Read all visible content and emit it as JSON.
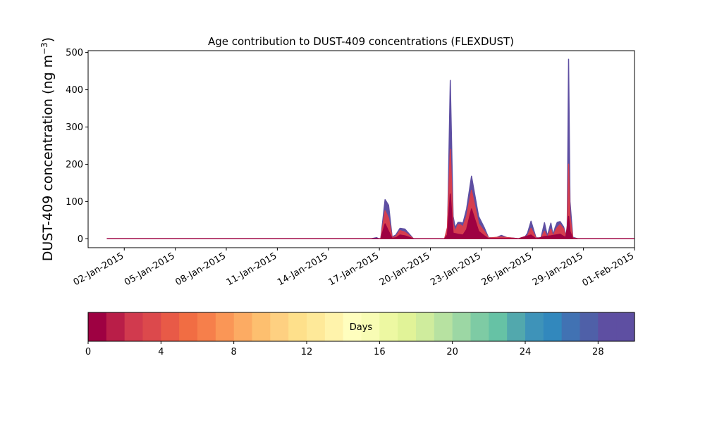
{
  "chart_data": {
    "type": "area",
    "title": "Age contribution to DUST-409 concentrations (FLEXDUST)",
    "ylabel": "DUST-409 concentration (ng m",
    "ylabel_unit_sup": "−3",
    "ylabel_close": ")",
    "xlabel": "",
    "ylim": [
      -24,
      505
    ],
    "xlim": [
      "2014-12-30T21:00",
      "2015-02-01T00:00"
    ],
    "y_ticks": [
      0,
      100,
      200,
      300,
      400,
      500
    ],
    "x_ticks": [
      {
        "date": "2015-01-02",
        "label": "02-Jan-2015"
      },
      {
        "date": "2015-01-05",
        "label": "05-Jan-2015"
      },
      {
        "date": "2015-01-08",
        "label": "08-Jan-2015"
      },
      {
        "date": "2015-01-11",
        "label": "11-Jan-2015"
      },
      {
        "date": "2015-01-14",
        "label": "14-Jan-2015"
      },
      {
        "date": "2015-01-17",
        "label": "17-Jan-2015"
      },
      {
        "date": "2015-01-20",
        "label": "20-Jan-2015"
      },
      {
        "date": "2015-01-23",
        "label": "23-Jan-2015"
      },
      {
        "date": "2015-01-26",
        "label": "26-Jan-2015"
      },
      {
        "date": "2015-01-29",
        "label": "29-Jan-2015"
      },
      {
        "date": "2015-02-01",
        "label": "01-Feb-2015"
      }
    ],
    "grid": false,
    "series": [
      {
        "color": "#5e4fa2",
        "x": [
          "2015-01-01T00:00",
          "2015-01-16T12:00",
          "2015-01-16T20:00",
          "2015-01-16T23:00",
          "2015-01-17T02:00",
          "2015-01-17T08:00",
          "2015-01-17T13:00",
          "2015-01-17T18:00",
          "2015-01-17T23:00",
          "2015-01-18T05:00",
          "2015-01-18T12:00",
          "2015-01-19T00:00",
          "2015-01-20T00:00",
          "2015-01-20T16:00",
          "2015-01-20T20:00",
          "2015-01-21T00:00",
          "2015-01-21T04:00",
          "2015-01-21T08:00",
          "2015-01-21T11:00",
          "2015-01-21T15:00",
          "2015-01-21T18:00",
          "2015-01-21T22:00",
          "2015-01-22T03:00",
          "2015-01-22T10:00",
          "2015-01-22T20:00",
          "2015-01-23T04:00",
          "2015-01-23T10:00",
          "2015-01-23T20:00",
          "2015-01-24T04:00",
          "2015-01-24T12:00",
          "2015-01-24T20:00",
          "2015-01-25T04:00",
          "2015-01-25T12:00",
          "2015-01-25T17:00",
          "2015-01-25T22:00",
          "2015-01-26T05:00",
          "2015-01-26T12:00",
          "2015-01-26T17:00",
          "2015-01-26T21:00",
          "2015-01-27T02:00",
          "2015-01-27T05:00",
          "2015-01-27T08:00",
          "2015-01-27T11:00",
          "2015-01-27T15:00",
          "2015-01-27T20:00",
          "2015-01-27T23:00",
          "2015-01-28T01:00",
          "2015-01-28T03:00",
          "2015-01-28T05:00",
          "2015-01-28T09:00",
          "2015-01-28T16:00",
          "2015-01-29T06:00",
          "2015-01-31T23:00"
        ],
        "values": [
          0,
          0,
          3,
          0,
          0,
          105,
          90,
          5,
          10,
          28,
          26,
          0,
          0,
          0,
          0,
          0,
          425,
          60,
          30,
          44,
          44,
          42,
          80,
          168,
          60,
          30,
          3,
          2,
          9,
          3,
          2,
          0,
          1,
          15,
          47,
          3,
          2,
          43,
          8,
          42,
          10,
          30,
          44,
          46,
          32,
          10,
          16,
          482,
          100,
          4,
          0,
          0,
          0
        ]
      },
      {
        "color": "#d53e4f",
        "x": [
          "2015-01-01T00:00",
          "2015-01-16T22:00",
          "2015-01-17T02:00",
          "2015-01-17T08:00",
          "2015-01-17T13:00",
          "2015-01-17T18:00",
          "2015-01-17T23:00",
          "2015-01-18T05:00",
          "2015-01-18T12:00",
          "2015-01-19T00:00",
          "2015-01-20T00:00",
          "2015-01-20T20:00",
          "2015-01-21T00:00",
          "2015-01-21T04:00",
          "2015-01-21T08:00",
          "2015-01-21T11:00",
          "2015-01-21T15:00",
          "2015-01-21T18:00",
          "2015-01-21T22:00",
          "2015-01-22T03:00",
          "2015-01-22T10:00",
          "2015-01-22T20:00",
          "2015-01-23T04:00",
          "2015-01-23T10:00",
          "2015-01-24T04:00",
          "2015-01-25T04:00",
          "2015-01-25T17:00",
          "2015-01-25T22:00",
          "2015-01-26T05:00",
          "2015-01-26T12:00",
          "2015-01-26T17:00",
          "2015-01-26T21:00",
          "2015-01-27T02:00",
          "2015-01-27T05:00",
          "2015-01-27T08:00",
          "2015-01-27T11:00",
          "2015-01-27T15:00",
          "2015-01-27T20:00",
          "2015-01-27T23:00",
          "2015-01-28T01:00",
          "2015-01-28T03:00",
          "2015-01-28T05:00",
          "2015-01-28T09:00",
          "2015-01-28T16:00",
          "2015-01-31T23:00"
        ],
        "values": [
          0,
          0,
          0,
          75,
          55,
          3,
          6,
          22,
          18,
          0,
          0,
          0,
          30,
          240,
          40,
          20,
          38,
          38,
          32,
          60,
          130,
          40,
          20,
          2,
          5,
          0,
          8,
          28,
          2,
          1,
          20,
          4,
          26,
          6,
          20,
          30,
          38,
          26,
          8,
          12,
          200,
          60,
          2,
          0,
          0
        ]
      },
      {
        "color": "#9e0142",
        "x": [
          "2015-01-01T00:00",
          "2015-01-16T22:00",
          "2015-01-17T02:00",
          "2015-01-17T08:00",
          "2015-01-17T13:00",
          "2015-01-17T18:00",
          "2015-01-18T00:00",
          "2015-01-18T05:00",
          "2015-01-18T12:00",
          "2015-01-19T00:00",
          "2015-01-20T20:00",
          "2015-01-21T00:00",
          "2015-01-21T04:00",
          "2015-01-21T08:00",
          "2015-01-21T15:00",
          "2015-01-21T22:00",
          "2015-01-22T03:00",
          "2015-01-22T10:00",
          "2015-01-22T20:00",
          "2015-01-23T04:00",
          "2015-01-23T10:00",
          "2015-01-25T04:00",
          "2015-01-25T22:00",
          "2015-01-26T05:00",
          "2015-01-26T17:00",
          "2015-01-27T02:00",
          "2015-01-27T15:00",
          "2015-01-27T23:00",
          "2015-01-28T03:00",
          "2015-01-28T05:00",
          "2015-01-28T09:00",
          "2015-01-28T16:00",
          "2015-01-31T23:00"
        ],
        "values": [
          0,
          0,
          0,
          40,
          20,
          1,
          3,
          10,
          8,
          0,
          0,
          10,
          120,
          15,
          12,
          10,
          25,
          80,
          20,
          8,
          0,
          0,
          10,
          0,
          6,
          8,
          12,
          3,
          60,
          20,
          0,
          0,
          0
        ]
      }
    ],
    "colorbar": {
      "label": "Days",
      "range": [
        0,
        30
      ],
      "bins": 30,
      "ticks": [
        0,
        4,
        8,
        12,
        16,
        20,
        24,
        28
      ],
      "colors": [
        "#9e0142",
        "#b91e48",
        "#d13a4e",
        "#dc494c",
        "#e85a47",
        "#f16d43",
        "#f67f4b",
        "#fa9656",
        "#fcab63",
        "#fdbf6f",
        "#fed081",
        "#fee08b",
        "#fee999",
        "#fff3ab",
        "#fffebe",
        "#f8fcb4",
        "#edf8a2",
        "#e1f398",
        "#cfec9d",
        "#b7e2a1",
        "#9cd7a4",
        "#7ecba4",
        "#66c2a5",
        "#52a8ad",
        "#3e93b9",
        "#3288bd",
        "#4172b3",
        "#4f60a8",
        "#5e4fa2",
        "#5e4fa2"
      ]
    }
  }
}
